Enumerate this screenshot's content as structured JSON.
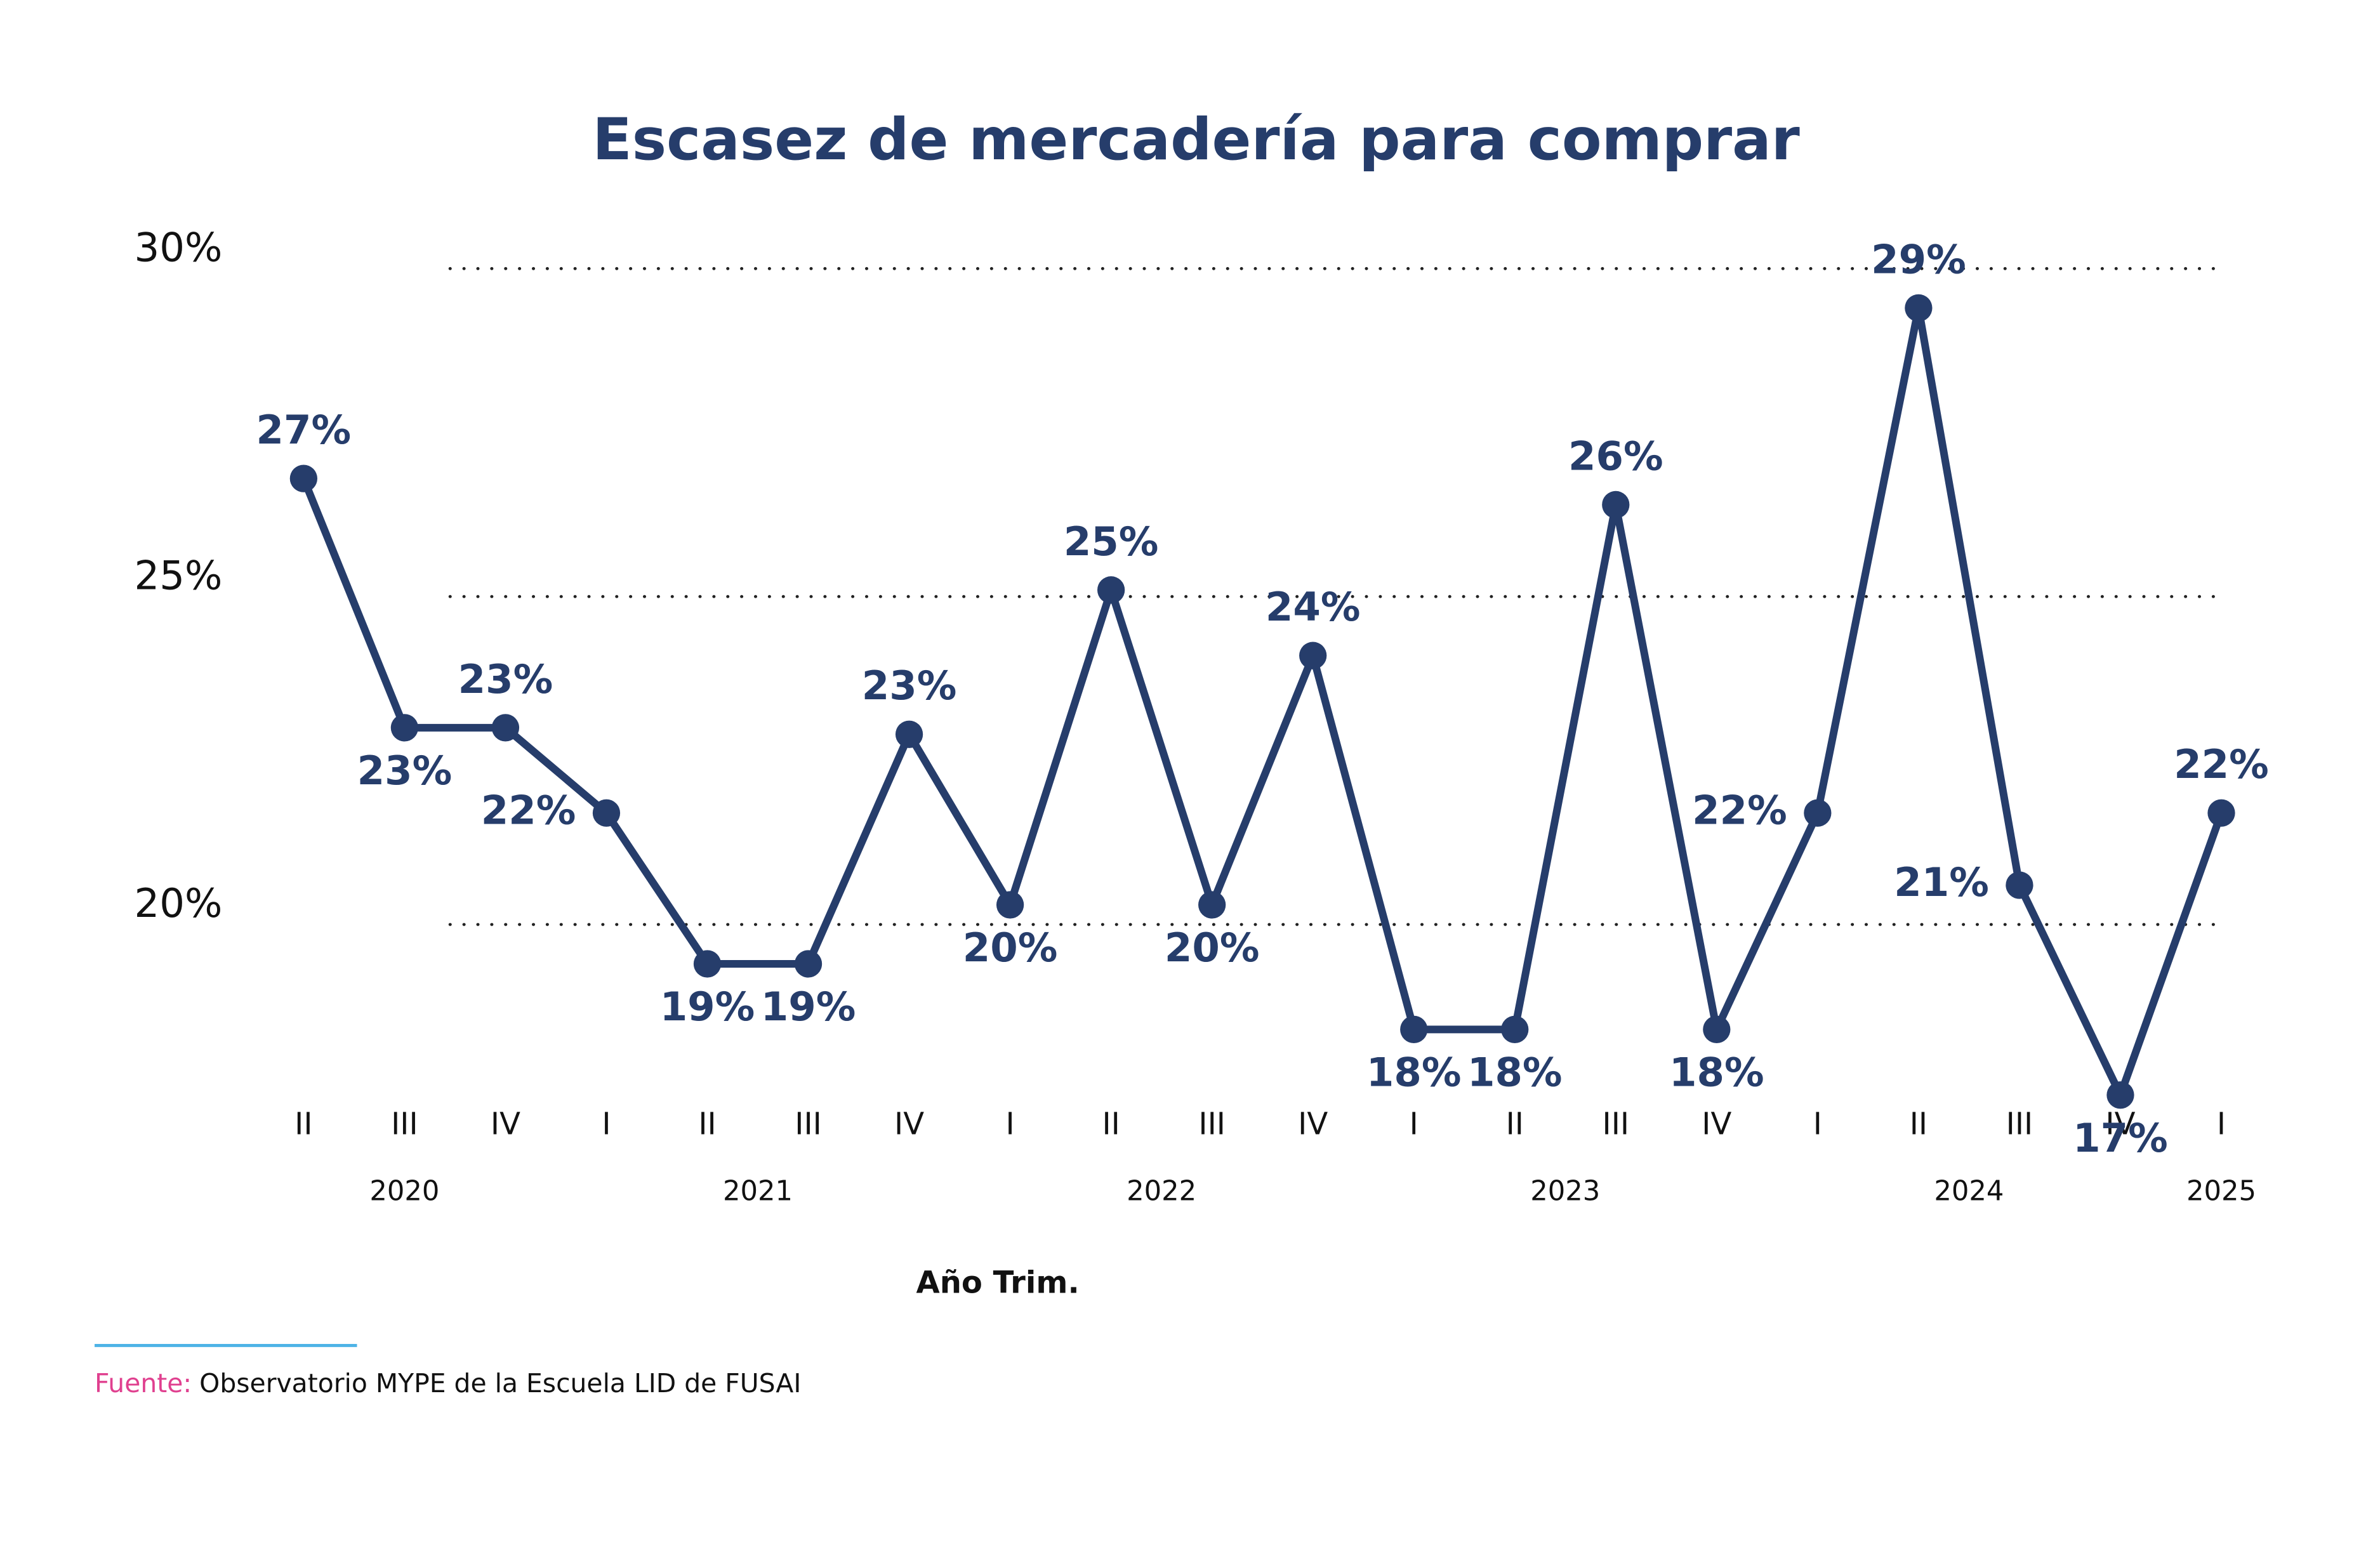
{
  "chart_data": {
    "type": "line",
    "title": "Escasez de mercadería para comprar",
    "x_label": "Año Trim.",
    "categories": [
      "II",
      "III",
      "IV",
      "I",
      "II",
      "III",
      "IV",
      "I",
      "II",
      "III",
      "IV",
      "I",
      "II",
      "III",
      "IV",
      "I",
      "II",
      "III",
      "IV",
      "I"
    ],
    "years": [
      "2020",
      "2021",
      "2022",
      "2023",
      "2024",
      "2025"
    ],
    "series": [
      {
        "name": "Escasez de mercadería para comprar",
        "color": "#263d6b",
        "values": [
          26.8,
          23.0,
          23.0,
          21.7,
          19.4,
          19.4,
          22.9,
          20.3,
          25.1,
          20.3,
          24.1,
          18.4,
          18.4,
          26.4,
          18.4,
          21.7,
          29.4,
          20.6,
          17.4,
          21.7
        ],
        "value_labels": [
          "27%",
          "23%",
          "23%",
          "22%",
          "19%",
          "19%",
          "23%",
          "20%",
          "25%",
          "20%",
          "24%",
          "18%",
          "18%",
          "26%",
          "18%",
          "22%",
          "29%",
          "21%",
          "17%",
          "22%"
        ]
      }
    ],
    "ylim": [
      15,
      30
    ],
    "yticks": [
      {
        "value": 20,
        "label": "20%"
      },
      {
        "value": 25,
        "label": "25%"
      },
      {
        "value": 30,
        "label": "30%"
      }
    ],
    "grid": true,
    "source_label": "Fuente:",
    "source": "Observatorio MYPE de la Escuela LID de FUSAI"
  }
}
